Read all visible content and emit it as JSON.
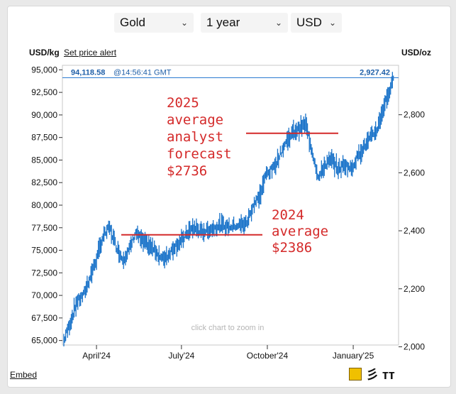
{
  "selectors": {
    "metal": "Gold",
    "period": "1 year",
    "currency": "USD"
  },
  "labels": {
    "left_unit": "USD/kg",
    "set_alert": "Set price alert",
    "right_unit": "USD/oz",
    "zoom_hint": "click chart to zoom in",
    "embed": "Embed",
    "current_kg": "94,118.58",
    "current_time": "@14:56:41 GMT",
    "current_oz": "2,927.42"
  },
  "annotations": {
    "forecast_2025": [
      "2025",
      "average",
      "analyst",
      "forecast",
      "$2736"
    ],
    "average_2024": [
      "2024",
      "average",
      "$2386"
    ]
  },
  "colors": {
    "series": "#1a73c9",
    "current_line": "#2a7ad1",
    "annotation": "#d42a2a"
  },
  "logo_text": "彡 тт",
  "chart_data": {
    "type": "line",
    "title": "",
    "series_name": "",
    "x": [
      "2024-02-26",
      "2024-03-04",
      "2024-03-11",
      "2024-03-18",
      "2024-03-25",
      "2024-04-01",
      "2024-04-08",
      "2024-04-15",
      "2024-04-22",
      "2024-04-29",
      "2024-05-06",
      "2024-05-13",
      "2024-05-20",
      "2024-05-27",
      "2024-06-03",
      "2024-06-10",
      "2024-06-17",
      "2024-06-24",
      "2024-07-01",
      "2024-07-08",
      "2024-07-15",
      "2024-07-22",
      "2024-07-29",
      "2024-08-05",
      "2024-08-12",
      "2024-08-19",
      "2024-08-26",
      "2024-09-02",
      "2024-09-09",
      "2024-09-16",
      "2024-09-23",
      "2024-09-30",
      "2024-10-07",
      "2024-10-14",
      "2024-10-21",
      "2024-10-28",
      "2024-11-04",
      "2024-11-11",
      "2024-11-18",
      "2024-11-25",
      "2024-12-02",
      "2024-12-09",
      "2024-12-16",
      "2024-12-23",
      "2024-12-30",
      "2025-01-06",
      "2025-01-13",
      "2025-01-20",
      "2025-01-27",
      "2025-02-03",
      "2025-02-10",
      "2025-02-14"
    ],
    "values_usd_kg": [
      65000,
      67000,
      69300,
      70000,
      72000,
      74000,
      76500,
      77500,
      75500,
      74000,
      75000,
      77000,
      76000,
      75500,
      75000,
      74000,
      74500,
      75500,
      76000,
      77000,
      77500,
      77000,
      77200,
      77500,
      77800,
      77600,
      77700,
      77800,
      78000,
      80000,
      81000,
      83500,
      84000,
      85500,
      87000,
      88000,
      88500,
      89000,
      86000,
      83000,
      84500,
      85000,
      84000,
      84500,
      84000,
      85500,
      86500,
      87500,
      88500,
      91000,
      93000,
      94118.58
    ],
    "left_axis": {
      "label": "USD/kg",
      "ticks": [
        65000,
        67500,
        70000,
        72500,
        75000,
        77500,
        80000,
        82500,
        85000,
        87500,
        90000,
        92500,
        95000
      ],
      "ylim": [
        64500,
        95500
      ]
    },
    "right_axis": {
      "label": "USD/oz",
      "ticks": [
        2000,
        2200,
        2400,
        2600,
        2800
      ]
    },
    "x_ticks": [
      "April'24",
      "July'24",
      "October'24",
      "January'25"
    ],
    "x_tick_dates": [
      "2024-04-01",
      "2024-07-01",
      "2024-10-01",
      "2025-01-01"
    ],
    "current_value_kg": 94118.58,
    "current_value_oz": 2927.42,
    "reference_lines_usd_oz": [
      {
        "label": "2025 average analyst forecast",
        "value": 2736
      },
      {
        "label": "2024 average",
        "value": 2386
      }
    ],
    "grid": false
  }
}
